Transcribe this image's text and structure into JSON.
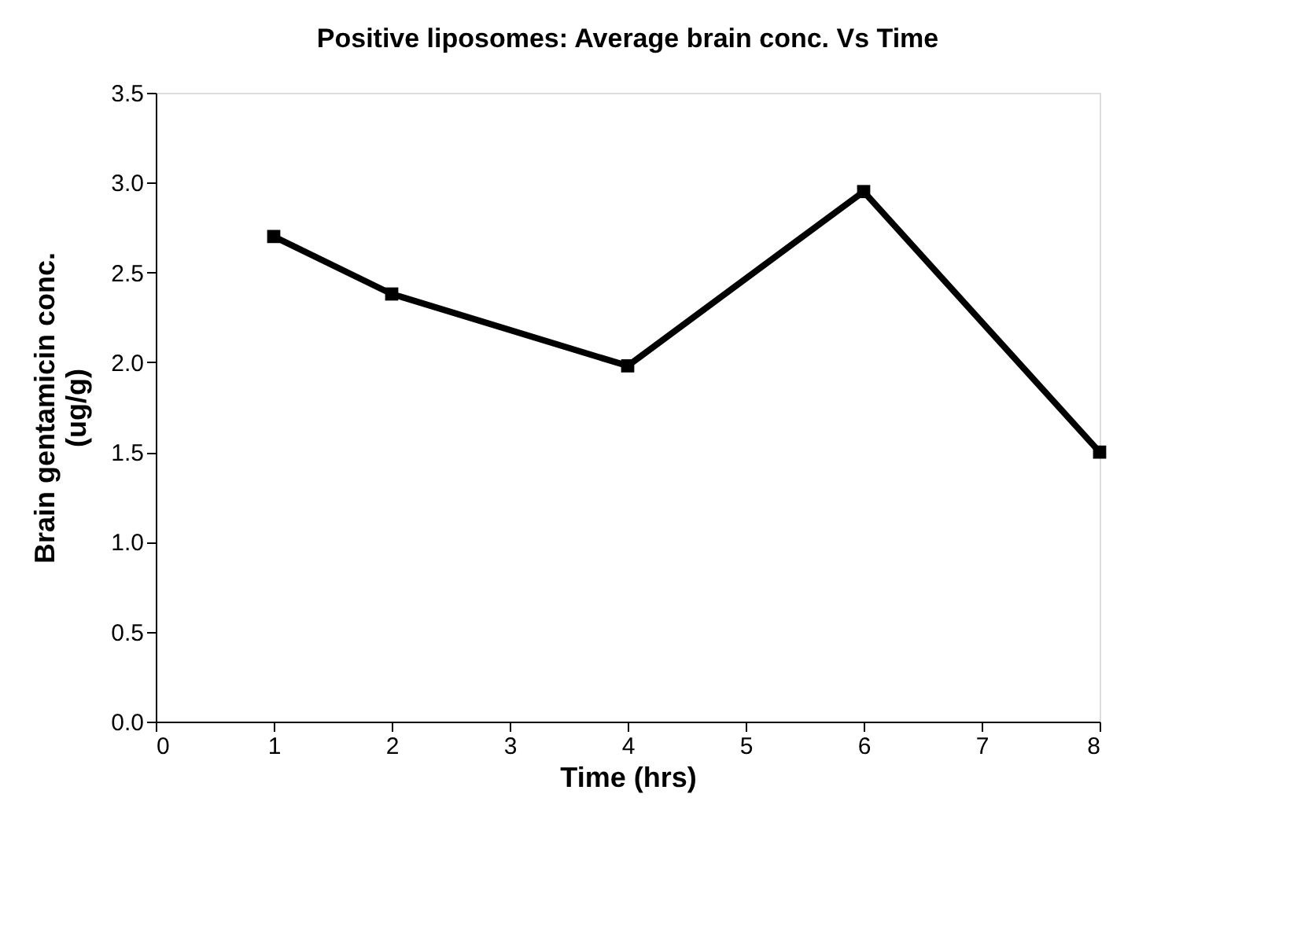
{
  "chart_data": {
    "type": "line",
    "title": "Positive liposomes: Average brain conc. Vs Time",
    "xlabel": "Time (hrs)",
    "ylabel": "Brain gentamicin conc. (ug/g)",
    "x": [
      1,
      2,
      4,
      6,
      8
    ],
    "series": [
      {
        "color": "#000000",
        "values": [
          2.7,
          2.38,
          1.98,
          2.95,
          1.5
        ]
      }
    ],
    "xlim": [
      0,
      8
    ],
    "xticks": [
      0,
      1,
      2,
      3,
      4,
      5,
      6,
      7,
      8
    ],
    "ylim": [
      0,
      3.5
    ],
    "yticks": [
      {
        "value": 0,
        "label": "0.0"
      },
      0.5,
      {
        "value": 1,
        "label": "1.0"
      },
      1.5,
      {
        "value": 2,
        "label": "2.0"
      },
      2.5,
      {
        "value": 3,
        "label": "3.0"
      },
      3.5
    ],
    "grid": false,
    "legend": false,
    "marker": "square",
    "line_style": "solid"
  }
}
